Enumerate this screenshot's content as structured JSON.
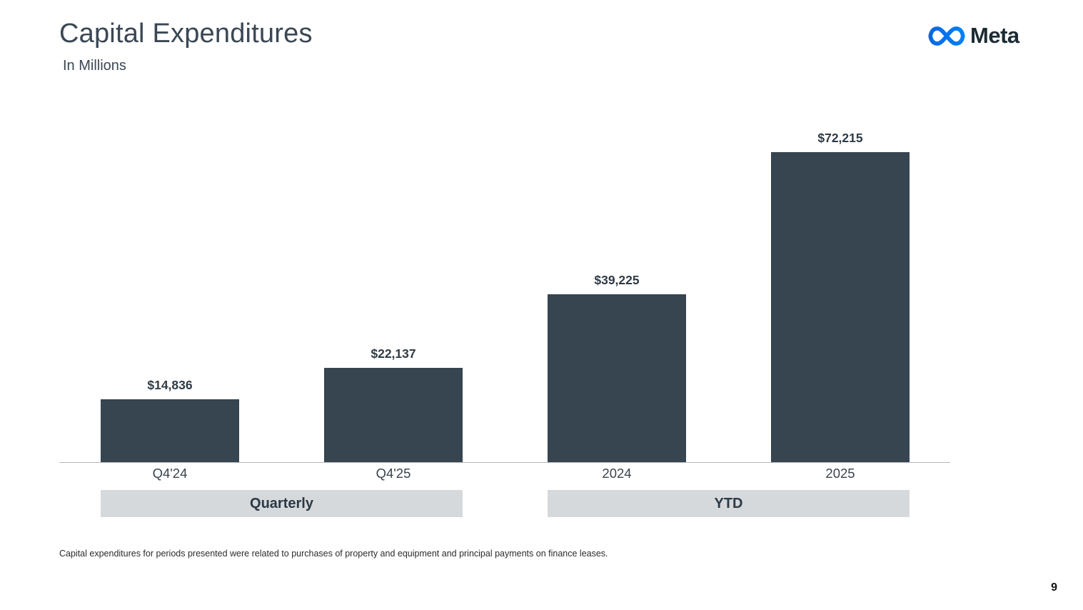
{
  "slide": {
    "title": "Capital Expenditures",
    "subtitle": "In Millions",
    "brand": "Meta",
    "footnote": "Capital expenditures for periods presented were related to purchases of property and equipment and principal payments on finance leases.",
    "page_number": "9"
  },
  "chart_data": {
    "type": "bar",
    "title": "Capital Expenditures",
    "subtitle": "In Millions",
    "unit": "USD millions",
    "categories": [
      "Q4'24",
      "Q4'25",
      "2024",
      "2025"
    ],
    "values": [
      14836,
      22137,
      39225,
      72215
    ],
    "value_labels": [
      "$14,836",
      "$22,137",
      "$39,225",
      "$72,215"
    ],
    "groups": [
      {
        "label": "Quarterly",
        "span": [
          "Q4'24",
          "Q4'25"
        ]
      },
      {
        "label": "YTD",
        "span": [
          "2024",
          "2025"
        ]
      }
    ],
    "xlabel": "",
    "ylabel": "",
    "ylim": [
      0,
      78000
    ],
    "gridlines": false,
    "legend": "none",
    "bar_color": "#364550",
    "group_band_color": "#d5d9dc",
    "accent_blue": "#0668E1"
  }
}
